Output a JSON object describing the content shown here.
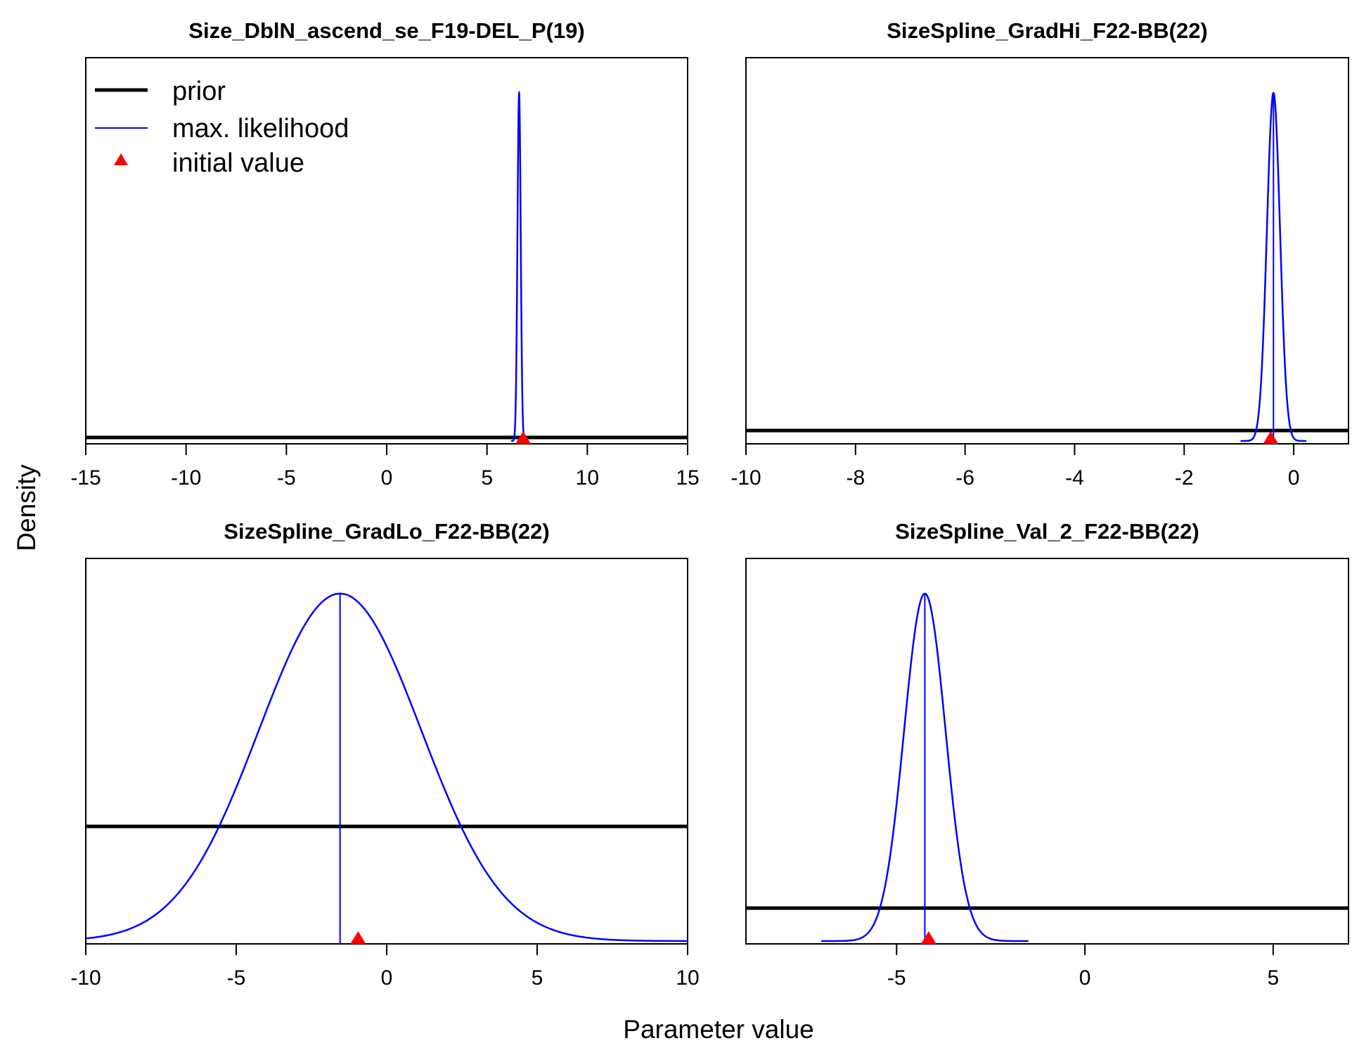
{
  "figure": {
    "ylabel": "Density",
    "xlabel": "Parameter value",
    "legend": {
      "placement": "top-left of first panel",
      "items": [
        {
          "label": "prior",
          "color": "#000000",
          "kind": "thick-line"
        },
        {
          "label": "max. likelihood",
          "color": "#0000ff",
          "kind": "thin-line"
        },
        {
          "label": "initial value",
          "color": "#ff0000",
          "kind": "triangle"
        }
      ]
    }
  },
  "chart_data": [
    {
      "type": "line",
      "title": "Size_DblN_ascend_se_F19-DEL_P(19)",
      "xlim": [
        -15,
        15
      ],
      "xticks": [
        -15,
        -10,
        -5,
        0,
        5,
        10,
        15
      ],
      "tick_labels": [
        "-15",
        "-10",
        "-5",
        "0",
        "5",
        "10",
        "15"
      ],
      "prior_level": 0.01,
      "mle": {
        "mean": 6.6,
        "sd": 0.08,
        "show_vline": false
      },
      "initial_value": 6.8
    },
    {
      "type": "line",
      "title": "SizeSpline_GradHi_F22-BB(22)",
      "xlim": [
        -10,
        1
      ],
      "xticks": [
        -10,
        -8,
        -6,
        -4,
        -2,
        0
      ],
      "tick_labels": [
        "-10",
        "-8",
        "-6",
        "-4",
        "-2",
        "0"
      ],
      "prior_level": 0.03,
      "mle": {
        "mean": -0.37,
        "sd": 0.12,
        "show_vline": true
      },
      "initial_value": -0.42
    },
    {
      "type": "line",
      "title": "SizeSpline_GradLo_F22-BB(22)",
      "xlim": [
        -10,
        10
      ],
      "xticks": [
        -10,
        -5,
        0,
        5,
        10
      ],
      "tick_labels": [
        "-10",
        "-5",
        "0",
        "5",
        "10"
      ],
      "prior_level": 0.33,
      "mle": {
        "mean": -1.55,
        "sd": 2.7,
        "show_vline": true
      },
      "initial_value": -0.95
    },
    {
      "type": "line",
      "title": "SizeSpline_Val_2_F22-BB(22)",
      "xlim": [
        -9,
        7
      ],
      "xticks": [
        -5,
        0,
        5
      ],
      "tick_labels": [
        "-5",
        "0",
        "5"
      ],
      "prior_level": 0.095,
      "mle": {
        "mean": -4.25,
        "sd": 0.55,
        "show_vline": true
      },
      "initial_value": -4.15
    }
  ]
}
